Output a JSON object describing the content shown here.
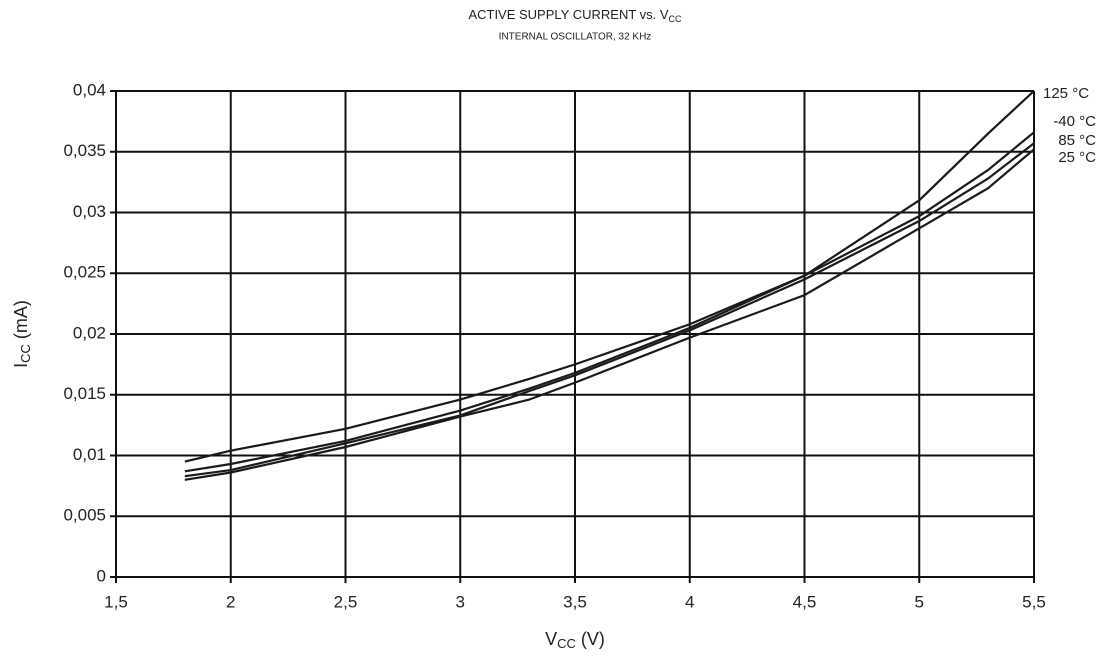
{
  "chart_data": {
    "type": "line",
    "title": {
      "text": "ACTIVE SUPPLY CURRENT vs. V",
      "sub": "CC"
    },
    "subtitle": "INTERNAL OSCILLATOR, 32 KHz",
    "x_label": {
      "text": "V",
      "sub": "CC",
      "suffix": " (V)"
    },
    "y_label": {
      "text": "I",
      "sub": "CC",
      "suffix": " (mA)"
    },
    "x": [
      1.8,
      2,
      2.5,
      3,
      3.3,
      3.5,
      4,
      4.5,
      5,
      5.3,
      5.5
    ],
    "series": [
      {
        "name": "125 °C",
        "color": "#1a1a1a",
        "values": [
          0.0095,
          0.0104,
          0.0122,
          0.0146,
          0.0163,
          0.0175,
          0.0208,
          0.0248,
          0.031,
          0.0365,
          0.04
        ]
      },
      {
        "name": "-40 °C",
        "color": "#1a1a1a",
        "values": [
          0.0087,
          0.0093,
          0.0112,
          0.0137,
          0.0155,
          0.0168,
          0.0205,
          0.0248,
          0.0297,
          0.0335,
          0.0366
        ]
      },
      {
        "name": "85 °C",
        "color": "#1a1a1a",
        "values": [
          0.0083,
          0.0088,
          0.011,
          0.0133,
          0.0153,
          0.0166,
          0.0203,
          0.0245,
          0.0293,
          0.0328,
          0.0357
        ]
      },
      {
        "name": "25 °C",
        "color": "#1a1a1a",
        "values": [
          0.008,
          0.0086,
          0.0107,
          0.0132,
          0.0146,
          0.016,
          0.0197,
          0.0232,
          0.0287,
          0.032,
          0.0352
        ]
      }
    ],
    "xlim": [
      1.5,
      5.5
    ],
    "xticks": [
      {
        "value": 1.5,
        "label": "1,5"
      },
      2,
      {
        "value": 2.5,
        "label": "2,5"
      },
      3,
      {
        "value": 3.5,
        "label": "3,5"
      },
      4,
      {
        "value": 4.5,
        "label": "4,5"
      },
      5,
      {
        "value": 5.5,
        "label": "5,5"
      }
    ],
    "ylim": [
      0,
      0.04
    ],
    "yticks": [
      0,
      {
        "value": 0.005,
        "label": "0,005"
      },
      {
        "value": 0.01,
        "label": "0,01"
      },
      {
        "value": 0.015,
        "label": "0,015"
      },
      {
        "value": 0.02,
        "label": "0,02"
      },
      {
        "value": 0.025,
        "label": "0,025"
      },
      {
        "value": 0.03,
        "label": "0,03"
      },
      {
        "value": 0.035,
        "label": "0,035"
      },
      {
        "value": 0.04,
        "label": "0,04"
      }
    ],
    "grid": true
  }
}
